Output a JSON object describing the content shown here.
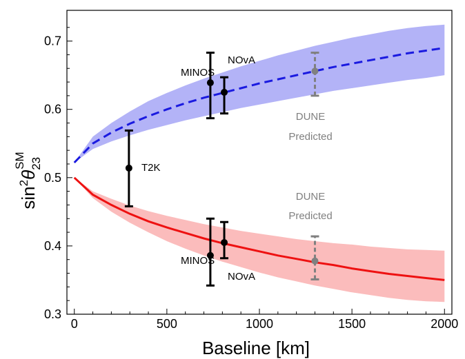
{
  "chart_data": {
    "type": "line",
    "title": "",
    "xlabel": "Baseline [km]",
    "ylabel_main": "sin",
    "ylabel_exp": "2",
    "ylabel_theta": "θ",
    "ylabel_sub": "23",
    "ylabel_sup": "SM",
    "xlim": [
      -40,
      2040
    ],
    "ylim": [
      0.3,
      0.745
    ],
    "xticks": [
      0,
      500,
      1000,
      1500,
      2000
    ],
    "yticks": [
      0.3,
      0.4,
      0.5,
      0.6,
      0.7
    ],
    "ytick_labels": [
      "0.3",
      "0.4",
      "0.5",
      "0.6",
      "0.7"
    ],
    "grid": false,
    "colors": {
      "upper_band": "#b3b3f7",
      "upper_line": "#1a1ae0",
      "lower_band": "#fbbcbc",
      "lower_line": "#ee1111",
      "data": "#000000",
      "dune": "#808080"
    },
    "series": [
      {
        "style": "dashed",
        "x": [
          0,
          100,
          200,
          300,
          400,
          500,
          600,
          700,
          800,
          900,
          1000,
          1100,
          1200,
          1300,
          1400,
          1500,
          1600,
          1700,
          1800,
          1900,
          2000
        ],
        "y": [
          0.522,
          0.55,
          0.566,
          0.579,
          0.59,
          0.6,
          0.609,
          0.617,
          0.624,
          0.631,
          0.638,
          0.644,
          0.65,
          0.656,
          0.662,
          0.667,
          0.672,
          0.677,
          0.682,
          0.686,
          0.69
        ],
        "band_low": [
          0.522,
          0.542,
          0.553,
          0.562,
          0.57,
          0.577,
          0.584,
          0.59,
          0.596,
          0.602,
          0.607,
          0.612,
          0.617,
          0.622,
          0.627,
          0.631,
          0.635,
          0.639,
          0.643,
          0.646,
          0.65
        ],
        "band_high": [
          0.522,
          0.56,
          0.58,
          0.597,
          0.612,
          0.624,
          0.635,
          0.645,
          0.654,
          0.663,
          0.671,
          0.679,
          0.686,
          0.693,
          0.699,
          0.705,
          0.71,
          0.715,
          0.719,
          0.722,
          0.724
        ]
      },
      {
        "style": "solid",
        "x": [
          0,
          100,
          200,
          300,
          400,
          500,
          600,
          700,
          800,
          900,
          1000,
          1100,
          1200,
          1300,
          1400,
          1500,
          1600,
          1700,
          1800,
          1900,
          2000
        ],
        "y": [
          0.5,
          0.475,
          0.46,
          0.447,
          0.436,
          0.427,
          0.419,
          0.411,
          0.404,
          0.398,
          0.392,
          0.386,
          0.381,
          0.376,
          0.372,
          0.367,
          0.363,
          0.359,
          0.356,
          0.353,
          0.35
        ],
        "band_low": [
          0.5,
          0.47,
          0.45,
          0.434,
          0.42,
          0.407,
          0.396,
          0.386,
          0.377,
          0.369,
          0.361,
          0.354,
          0.348,
          0.342,
          0.337,
          0.332,
          0.328,
          0.324,
          0.321,
          0.319,
          0.318
        ],
        "band_high": [
          0.5,
          0.48,
          0.469,
          0.459,
          0.451,
          0.444,
          0.438,
          0.432,
          0.427,
          0.422,
          0.418,
          0.414,
          0.41,
          0.407,
          0.404,
          0.402,
          0.399,
          0.397,
          0.395,
          0.394,
          0.393
        ]
      }
    ],
    "points": [
      {
        "label": "T2K",
        "x": 295,
        "y": 0.514,
        "lo": 0.458,
        "hi": 0.569,
        "kind": "data"
      },
      {
        "label": "MINOS",
        "x": 735,
        "y": 0.639,
        "lo": 0.587,
        "hi": 0.683,
        "kind": "data"
      },
      {
        "label": "NOvA",
        "x": 810,
        "y": 0.625,
        "lo": 0.594,
        "hi": 0.647,
        "kind": "data"
      },
      {
        "label": "MINOS",
        "x": 735,
        "y": 0.386,
        "lo": 0.342,
        "hi": 0.44,
        "kind": "data"
      },
      {
        "label": "NOvA",
        "x": 810,
        "y": 0.405,
        "lo": 0.382,
        "hi": 0.435,
        "kind": "data"
      },
      {
        "label": "DUNE",
        "x": 1300,
        "y": 0.656,
        "lo": 0.62,
        "hi": 0.683,
        "kind": "dune"
      },
      {
        "label": "DUNE",
        "x": 1300,
        "y": 0.378,
        "lo": 0.351,
        "hi": 0.414,
        "kind": "dune"
      }
    ],
    "annotations": {
      "minos_upper": "MINOS",
      "nova_upper": "NOvA",
      "t2k": "T2K",
      "minos_lower": "MINOS",
      "nova_lower": "NOvA",
      "dune_upper_1": "DUNE",
      "dune_upper_2": "Predicted",
      "dune_lower_1": "DUNE",
      "dune_lower_2": "Predicted"
    }
  }
}
